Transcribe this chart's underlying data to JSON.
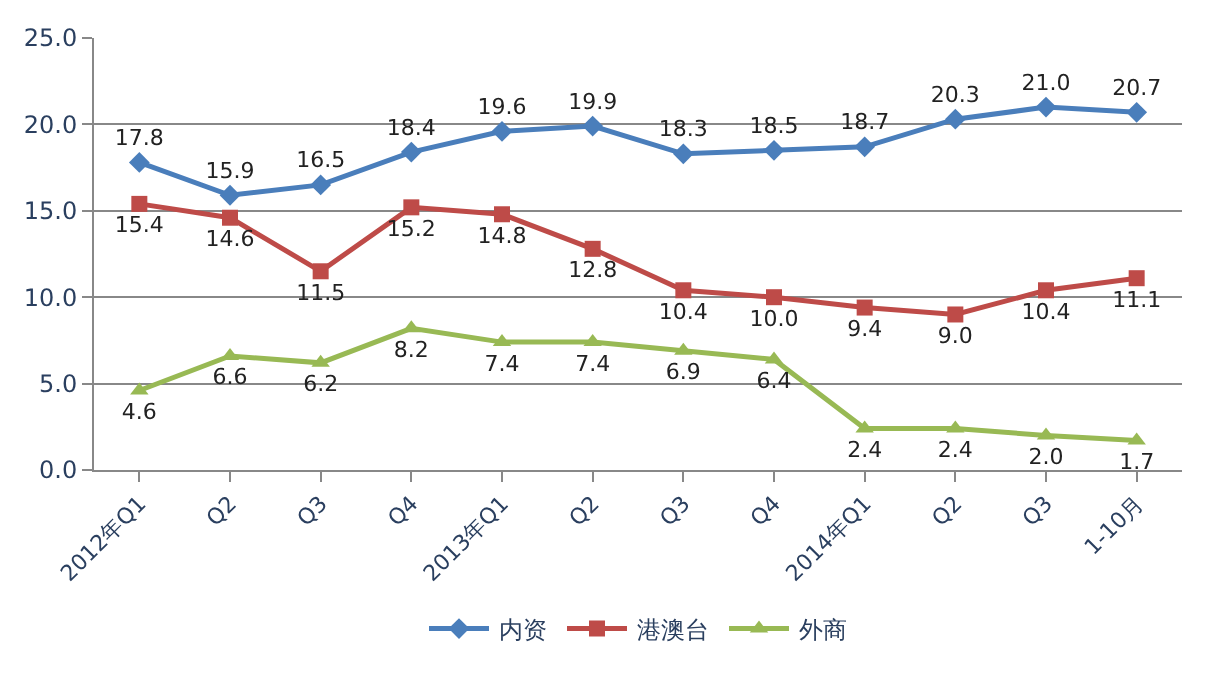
{
  "chart_data": {
    "type": "line",
    "categories": [
      "2012年Q1",
      "Q2",
      "Q3",
      "Q4",
      "2013年Q1",
      "Q2",
      "Q3",
      "Q4",
      "2014年Q1",
      "Q2",
      "Q3",
      "1-10月"
    ],
    "series": [
      {
        "name": "内资",
        "color": "#4a7ebb",
        "marker": "diamond",
        "values": [
          17.8,
          15.9,
          16.5,
          18.4,
          19.6,
          19.9,
          18.3,
          18.5,
          18.7,
          20.3,
          21.0,
          20.7
        ],
        "value_labels": [
          "17.8",
          "15.9",
          "16.5",
          "18.4",
          "19.6",
          "19.9",
          "18.3",
          "18.5",
          "18.7",
          "20.3",
          "21.0",
          "20.7"
        ]
      },
      {
        "name": "港澳台",
        "color": "#be4b48",
        "marker": "square",
        "values": [
          15.4,
          14.6,
          11.5,
          15.2,
          14.8,
          12.8,
          10.4,
          10.0,
          9.4,
          9.0,
          10.4,
          11.1
        ],
        "value_labels": [
          "15.4",
          "14.6",
          "11.5",
          "15.2",
          "14.8",
          "12.8",
          "10.4",
          "10.0",
          "9.4",
          "9.0",
          "10.4",
          "11.1"
        ]
      },
      {
        "name": "外商",
        "color": "#98b954",
        "marker": "triangle",
        "values": [
          4.6,
          6.6,
          6.2,
          8.2,
          7.4,
          7.4,
          6.9,
          6.4,
          2.4,
          2.4,
          2.0,
          1.7
        ],
        "value_labels": [
          "4.6",
          "6.6",
          "6.2",
          "8.2",
          "7.4",
          "7.4",
          "6.9",
          "6.4",
          "2.4",
          "2.4",
          "2.0",
          "1.7"
        ]
      }
    ],
    "ylim": [
      0,
      25
    ],
    "yticks": [
      {
        "value": 0,
        "label": "0.0"
      },
      {
        "value": 5,
        "label": "5.0"
      },
      {
        "value": 10,
        "label": "10.0"
      },
      {
        "value": 15,
        "label": "15.0"
      },
      {
        "value": 20,
        "label": "20.0"
      },
      {
        "value": 25,
        "label": "25.0"
      }
    ],
    "grid": "y",
    "legend": "bottom",
    "line_style": "solid"
  }
}
